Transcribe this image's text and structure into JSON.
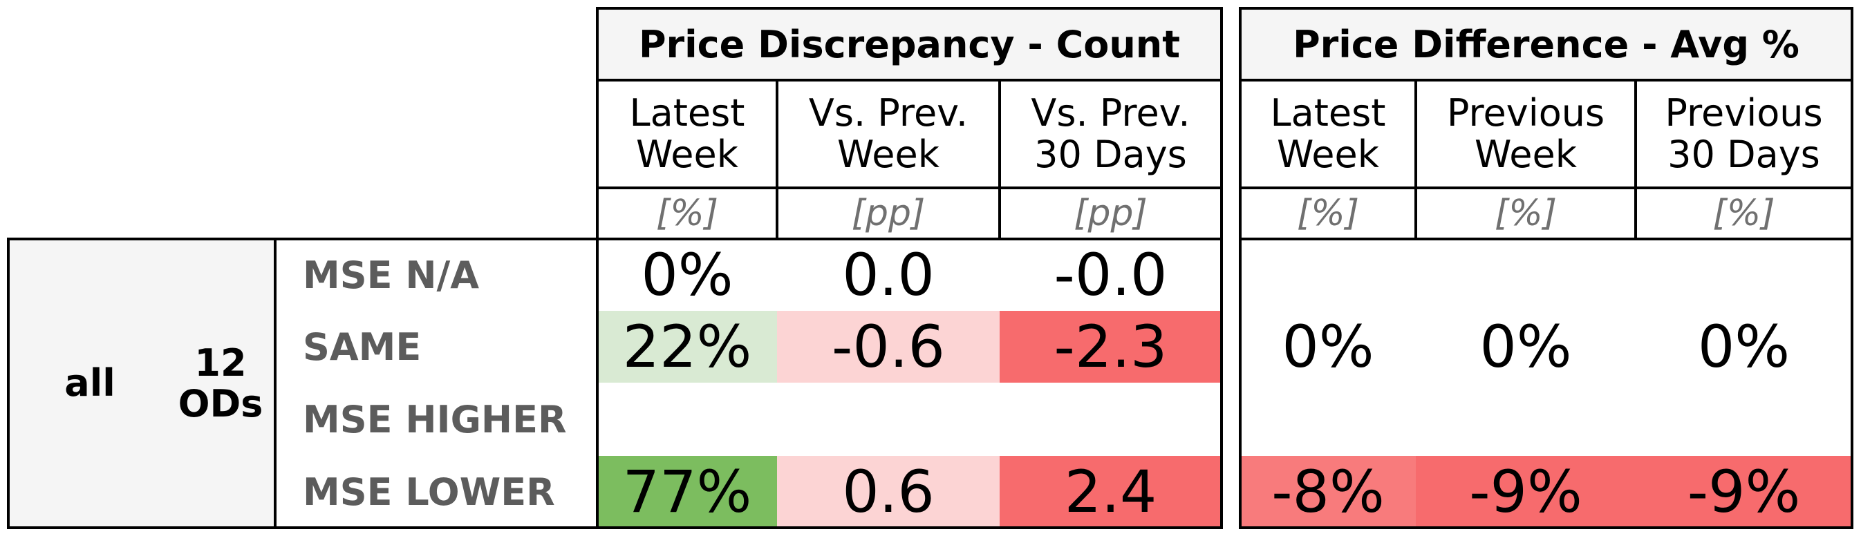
{
  "table": {
    "group": {
      "label": "all",
      "count_label": "12\nODs"
    },
    "row_labels": [
      "MSE N/A",
      "SAME",
      "MSE HIGHER",
      "MSE LOWER"
    ],
    "sections": [
      {
        "title": "Price Discrepancy - Count",
        "columns": [
          {
            "label": "Latest\nWeek",
            "unit": "[%]"
          },
          {
            "label": "Vs. Prev.\nWeek",
            "unit": "[pp]"
          },
          {
            "label": "Vs. Prev.\n30 Days",
            "unit": "[pp]"
          }
        ],
        "cells": [
          [
            {
              "text": "0%",
              "color": "#ffffff"
            },
            {
              "text": "0.0",
              "color": "#ffffff"
            },
            {
              "text": "-0.0",
              "color": "#ffffff"
            }
          ],
          [
            {
              "text": "22%",
              "color": "#d9ead3"
            },
            {
              "text": "-0.6",
              "color": "#fcd4d4"
            },
            {
              "text": "-2.3",
              "color": "#f76b6d"
            }
          ],
          [
            {
              "text": "",
              "color": "#ffffff"
            },
            {
              "text": "",
              "color": "#ffffff"
            },
            {
              "text": "",
              "color": "#ffffff"
            }
          ],
          [
            {
              "text": "77%",
              "color": "#7cbd5f"
            },
            {
              "text": "0.6",
              "color": "#fcd4d4"
            },
            {
              "text": "2.4",
              "color": "#f76b6d"
            }
          ]
        ]
      },
      {
        "title": "Price Difference - Avg %",
        "columns": [
          {
            "label": "Latest\nWeek",
            "unit": "[%]"
          },
          {
            "label": "Previous\nWeek",
            "unit": "[%]"
          },
          {
            "label": "Previous\n30 Days",
            "unit": "[%]"
          }
        ],
        "cells": [
          [
            {
              "text": "",
              "color": "#ffffff"
            },
            {
              "text": "",
              "color": "#ffffff"
            },
            {
              "text": "",
              "color": "#ffffff"
            }
          ],
          [
            {
              "text": "0%",
              "color": "#ffffff"
            },
            {
              "text": "0%",
              "color": "#ffffff"
            },
            {
              "text": "0%",
              "color": "#ffffff"
            }
          ],
          [
            {
              "text": "",
              "color": "#ffffff"
            },
            {
              "text": "",
              "color": "#ffffff"
            },
            {
              "text": "",
              "color": "#ffffff"
            }
          ],
          [
            {
              "text": "-8%",
              "color": "#f87b7c"
            },
            {
              "text": "-9%",
              "color": "#f76b6d"
            },
            {
              "text": "-9%",
              "color": "#f76b6d"
            }
          ]
        ]
      }
    ]
  },
  "chart_data": {
    "type": "table",
    "title": "",
    "group": "all",
    "count": "12 ODs",
    "rows": [
      "MSE N/A",
      "SAME",
      "MSE HIGHER",
      "MSE LOWER"
    ],
    "sections": [
      {
        "name": "Price Discrepancy - Count",
        "columns": [
          "Latest Week",
          "Vs. Prev. Week",
          "Vs. Prev. 30 Days"
        ],
        "units": [
          "[%]",
          "[pp]",
          "[pp]"
        ],
        "values": [
          [
            "0%",
            "0.0",
            "-0.0"
          ],
          [
            "22%",
            "-0.6",
            "-2.3"
          ],
          [
            "",
            "",
            ""
          ],
          [
            "77%",
            "0.6",
            "2.4"
          ]
        ]
      },
      {
        "name": "Price Difference - Avg %",
        "columns": [
          "Latest Week",
          "Previous Week",
          "Previous 30 Days"
        ],
        "units": [
          "[%]",
          "[%]",
          "[%]"
        ],
        "values": [
          [
            "",
            "",
            ""
          ],
          [
            "0%",
            "0%",
            "0%"
          ],
          [
            "",
            "",
            ""
          ],
          [
            "-8%",
            "-9%",
            "-9%"
          ]
        ]
      }
    ]
  }
}
